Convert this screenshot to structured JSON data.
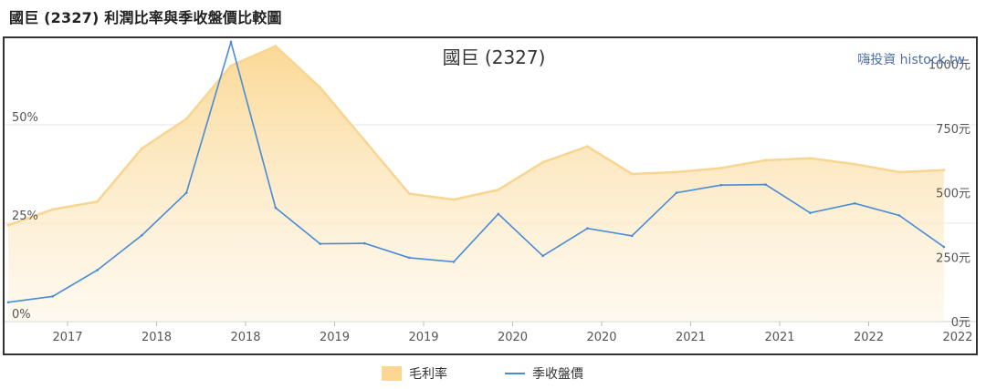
{
  "page_heading": "國巨 (2327) 利潤比率與季收盤價比較圖",
  "chart_data": {
    "type": "area",
    "title": "國巨 (2327)",
    "watermark": "嗨投資 histock.tw",
    "x_tick_labels": [
      "2017",
      "2018",
      "2018",
      "2019",
      "2019",
      "2020",
      "2020",
      "2021",
      "2021",
      "2022",
      "2022"
    ],
    "left_axis": {
      "ticks": [
        "0%",
        "25%",
        "50%"
      ],
      "range": [
        0,
        72
      ]
    },
    "right_axis": {
      "ticks": [
        "0元",
        "250元",
        "500元",
        "750元",
        "1000元"
      ],
      "range": [
        0,
        1100
      ]
    },
    "series": [
      {
        "name": "毛利率",
        "kind": "area",
        "axis": "left",
        "color": "#fbd791",
        "values": [
          24.5,
          28.5,
          30.5,
          44,
          51.5,
          65,
          70,
          59.5,
          46,
          32.5,
          31,
          33.5,
          40.5,
          44.5,
          37.5,
          38,
          39,
          41,
          41.5,
          40,
          38,
          38.5
        ]
      },
      {
        "name": "季收盤價",
        "kind": "line",
        "axis": "right",
        "color": "#4a8bd6",
        "values": [
          75,
          98,
          200,
          335,
          500,
          1085,
          442,
          302,
          304,
          248,
          232,
          418,
          255,
          362,
          333,
          500,
          530,
          532,
          422,
          459,
          412,
          290
        ]
      }
    ],
    "legend": {
      "position": "bottom-center",
      "items": [
        "毛利率",
        "季收盤價"
      ]
    },
    "grid": true
  }
}
